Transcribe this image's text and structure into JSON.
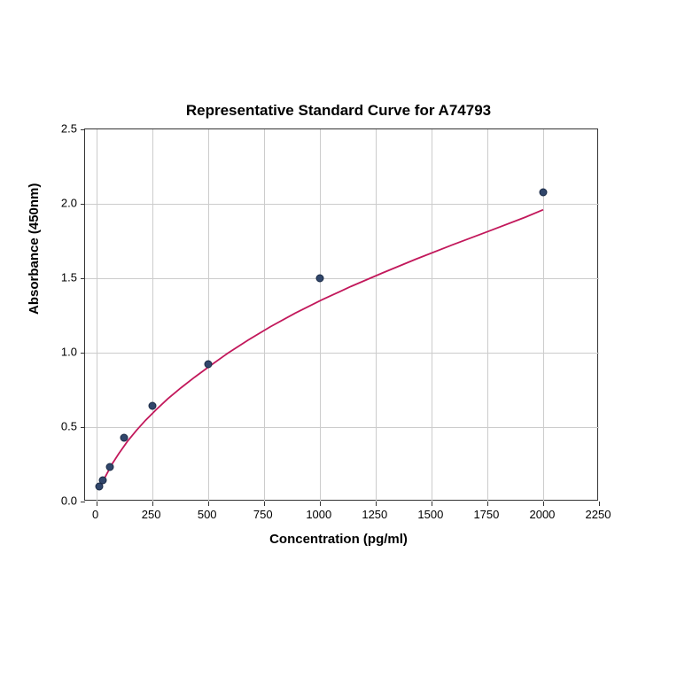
{
  "chart": {
    "type": "scatter-line",
    "title": "Representative Standard Curve for A74793",
    "title_fontsize": 17,
    "title_fontweight": "bold",
    "xlabel": "Concentration (pg/ml)",
    "ylabel": "Absorbance (450nm)",
    "label_fontsize": 15,
    "label_fontweight": "bold",
    "tick_fontsize": 13,
    "xlim": [
      -50,
      2250
    ],
    "ylim": [
      0.0,
      2.5
    ],
    "xticks": [
      0,
      250,
      500,
      750,
      1000,
      1250,
      1500,
      1750,
      2000,
      2250
    ],
    "yticks": [
      0.0,
      0.5,
      1.0,
      1.5,
      2.0,
      2.5
    ],
    "background_color": "#ffffff",
    "grid_color": "#cccccc",
    "border_color": "#333333",
    "grid": true,
    "data_points": {
      "x": [
        15,
        31,
        62,
        125,
        250,
        500,
        1000,
        2000
      ],
      "y": [
        0.1,
        0.14,
        0.23,
        0.43,
        0.64,
        0.92,
        1.5,
        2.08
      ]
    },
    "marker_color": "#31466b",
    "marker_border_color": "#1a2a45",
    "marker_size": 9,
    "curve_color": "#c2185b",
    "curve_width": 1.8,
    "curve_points": {
      "x": [
        15,
        40,
        70,
        100,
        140,
        180,
        220,
        270,
        320,
        380,
        440,
        510,
        590,
        680,
        780,
        890,
        1010,
        1140,
        1280,
        1430,
        1590,
        1760,
        1920,
        2000
      ],
      "y": [
        0.085,
        0.165,
        0.25,
        0.32,
        0.405,
        0.478,
        0.545,
        0.62,
        0.69,
        0.765,
        0.835,
        0.912,
        0.998,
        1.085,
        1.175,
        1.265,
        1.355,
        1.445,
        1.535,
        1.628,
        1.722,
        1.818,
        1.91,
        1.96
      ]
    }
  }
}
